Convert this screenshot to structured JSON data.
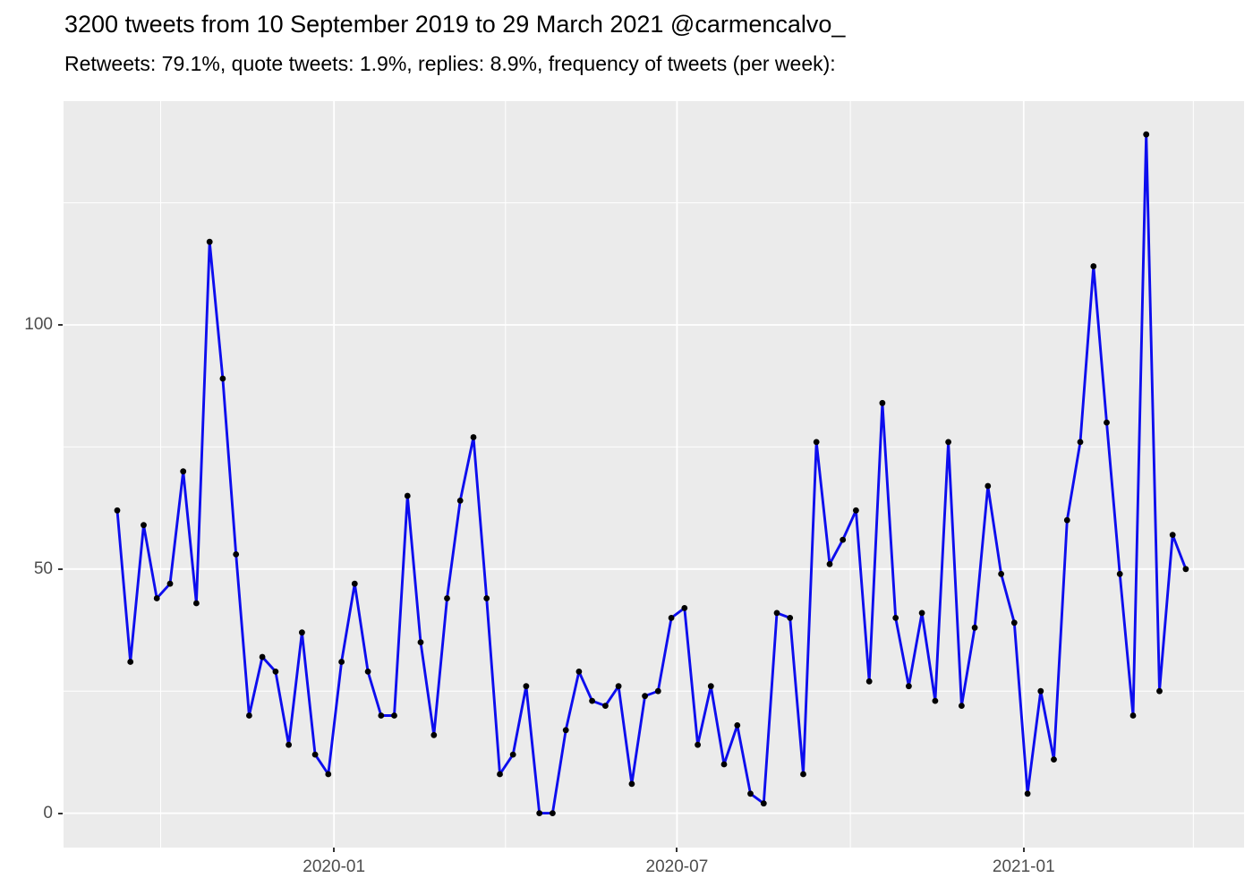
{
  "header": {
    "title": "3200 tweets from 10 September 2019 to 29 March 2021 @carmencalvo_",
    "subtitle": "Retweets: 79.1%, quote tweets: 1.9%, replies: 8.9%, frequency of tweets (per week):"
  },
  "chart_data": {
    "type": "line",
    "series_name": "tweets-per-week",
    "x_dates": [
      "2019-09-08",
      "2019-09-15",
      "2019-09-22",
      "2019-09-29",
      "2019-10-06",
      "2019-10-13",
      "2019-10-20",
      "2019-10-27",
      "2019-11-03",
      "2019-11-10",
      "2019-11-17",
      "2019-11-24",
      "2019-12-01",
      "2019-12-08",
      "2019-12-15",
      "2019-12-22",
      "2019-12-29",
      "2020-01-05",
      "2020-01-12",
      "2020-01-19",
      "2020-01-26",
      "2020-02-02",
      "2020-02-09",
      "2020-02-16",
      "2020-02-23",
      "2020-03-01",
      "2020-03-08",
      "2020-03-15",
      "2020-03-22",
      "2020-03-29",
      "2020-04-05",
      "2020-04-12",
      "2020-04-19",
      "2020-04-26",
      "2020-05-03",
      "2020-05-10",
      "2020-05-17",
      "2020-05-24",
      "2020-05-31",
      "2020-06-07",
      "2020-06-14",
      "2020-06-21",
      "2020-06-28",
      "2020-07-05",
      "2020-07-12",
      "2020-07-19",
      "2020-07-26",
      "2020-08-02",
      "2020-08-09",
      "2020-08-16",
      "2020-08-23",
      "2020-08-30",
      "2020-09-06",
      "2020-09-13",
      "2020-09-20",
      "2020-09-27",
      "2020-10-04",
      "2020-10-11",
      "2020-10-18",
      "2020-10-25",
      "2020-11-01",
      "2020-11-08",
      "2020-11-15",
      "2020-11-22",
      "2020-11-29",
      "2020-12-06",
      "2020-12-13",
      "2020-12-20",
      "2020-12-27",
      "2021-01-03",
      "2021-01-10",
      "2021-01-17",
      "2021-01-24",
      "2021-01-31",
      "2021-02-07",
      "2021-02-14",
      "2021-02-21",
      "2021-02-28",
      "2021-03-07",
      "2021-03-14",
      "2021-03-21",
      "2021-03-28"
    ],
    "values": [
      62,
      31,
      59,
      44,
      47,
      70,
      43,
      117,
      89,
      53,
      20,
      32,
      29,
      14,
      37,
      12,
      8,
      31,
      47,
      29,
      20,
      20,
      65,
      35,
      16,
      44,
      64,
      77,
      44,
      8,
      12,
      26,
      0,
      0,
      17,
      29,
      23,
      22,
      26,
      6,
      24,
      25,
      40,
      42,
      14,
      26,
      10,
      18,
      4,
      2,
      41,
      40,
      8,
      76,
      51,
      56,
      62,
      27,
      84,
      40,
      26,
      41,
      23,
      76,
      22,
      38,
      67,
      49,
      39,
      4,
      25,
      11,
      60,
      76,
      112,
      80,
      49,
      20,
      139,
      25,
      57,
      50
    ],
    "x_axis": {
      "major_ticks": [
        {
          "label": "2020-01",
          "week": 16.43
        },
        {
          "label": "2020-07",
          "week": 42.43
        },
        {
          "label": "2021-01",
          "week": 68.71
        }
      ],
      "minor_weeks": [
        3.29,
        29.43,
        55.57,
        81.57
      ]
    },
    "y_axis": {
      "major_ticks": [
        {
          "label": "0",
          "value": 0
        },
        {
          "label": "50",
          "value": 50
        },
        {
          "label": "100",
          "value": 100
        }
      ],
      "minor_values": [
        25,
        75,
        125
      ],
      "range": [
        -7,
        146
      ]
    },
    "grid": true,
    "legend": false,
    "colors": {
      "line": "#0d0dee",
      "point": "#000000",
      "panel_bg": "#ebebeb",
      "grid": "#ffffff",
      "axis_text": "#4d4d4d",
      "tick_mark": "#333333",
      "title_text": "#000000"
    }
  }
}
